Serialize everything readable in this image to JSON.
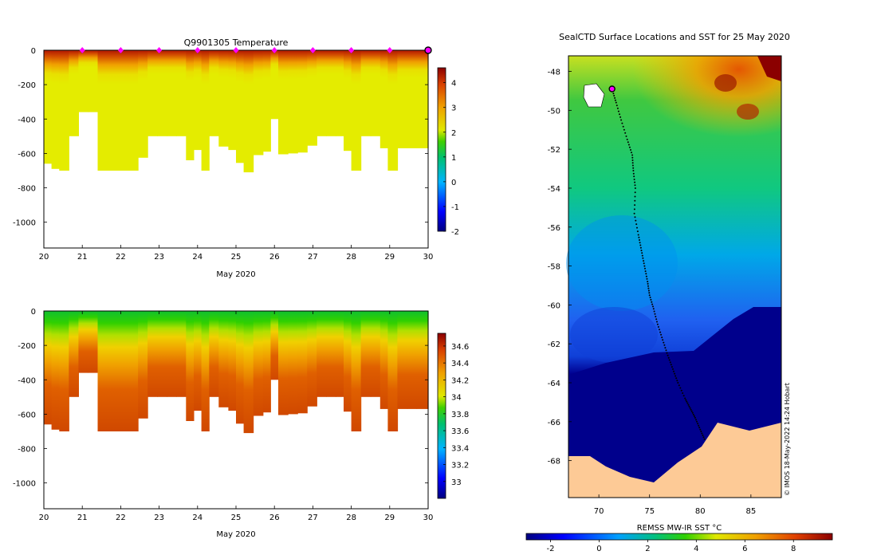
{
  "chart_data": [
    {
      "type": "heatmap",
      "id": "temperature",
      "title": "Q9901305  Temperature",
      "xlabel": "May 2020",
      "ylabel": "",
      "xlim": [
        20,
        30
      ],
      "ylim": [
        -1150,
        0
      ],
      "xticks": [
        "20",
        "21",
        "22",
        "23",
        "24",
        "25",
        "26",
        "27",
        "28",
        "29",
        "30"
      ],
      "yticks": [
        "0",
        "-200",
        "-400",
        "-600",
        "-800",
        "-1000"
      ],
      "ytick_values": [
        0,
        -200,
        -400,
        -600,
        -800,
        -1000
      ],
      "colorbar": {
        "min": -2,
        "max": 4.6,
        "ticks": [
          "4",
          "3",
          "2",
          "1",
          "0",
          "-1",
          "-2"
        ],
        "tick_values": [
          4,
          3,
          2,
          1,
          0,
          -1,
          -2
        ]
      },
      "profile_days": [
        20.0,
        20.2,
        20.4,
        20.65,
        20.9,
        21.15,
        21.4,
        21.5,
        21.7,
        21.95,
        22.2,
        22.45,
        22.7,
        22.95,
        23.2,
        23.45,
        23.7,
        23.9,
        24.1,
        24.3,
        24.55,
        24.8,
        25.0,
        25.2,
        25.45,
        25.7,
        25.9,
        26.1,
        26.35,
        26.6,
        26.85,
        27.1,
        27.35,
        27.6,
        27.8,
        28.0,
        28.25,
        28.5,
        28.75,
        28.95,
        29.2,
        29.45,
        29.7,
        29.95
      ],
      "profile_depths": [
        660,
        690,
        700,
        500,
        360,
        360,
        700,
        700,
        700,
        700,
        700,
        625,
        500,
        500,
        500,
        500,
        640,
        580,
        700,
        500,
        560,
        580,
        655,
        710,
        610,
        590,
        400,
        605,
        600,
        595,
        555,
        500,
        500,
        500,
        585,
        700,
        500,
        500,
        570,
        700,
        570,
        570,
        570,
        570
      ],
      "surface_marker_days": [
        21,
        22,
        23,
        24,
        25,
        26,
        27,
        28,
        29
      ],
      "surface_marker_color": "#ff00ff",
      "end_marker_day": 30
    },
    {
      "type": "heatmap",
      "id": "salinity",
      "title": "",
      "xlabel": "May 2020",
      "ylabel": "",
      "xlim": [
        20,
        30
      ],
      "ylim": [
        -1150,
        0
      ],
      "xticks": [
        "20",
        "21",
        "22",
        "23",
        "24",
        "25",
        "26",
        "27",
        "28",
        "29",
        "30"
      ],
      "yticks": [
        "0",
        "-200",
        "-400",
        "-600",
        "-800",
        "-1000"
      ],
      "ytick_values": [
        0,
        -200,
        -400,
        -600,
        -800,
        -1000
      ],
      "colorbar": {
        "min": 32.8,
        "max": 34.75,
        "ticks": [
          "34.6",
          "34.4",
          "34.2",
          "34",
          "33.8",
          "33.6",
          "33.4",
          "33.2",
          "33"
        ],
        "tick_values": [
          34.6,
          34.4,
          34.2,
          34,
          33.8,
          33.6,
          33.4,
          33.2,
          33
        ]
      },
      "profile_days": [
        20.0,
        20.2,
        20.4,
        20.65,
        20.9,
        21.15,
        21.4,
        21.5,
        21.7,
        21.95,
        22.2,
        22.45,
        22.7,
        22.95,
        23.2,
        23.45,
        23.7,
        23.9,
        24.1,
        24.3,
        24.55,
        24.8,
        25.0,
        25.2,
        25.45,
        25.7,
        25.9,
        26.1,
        26.35,
        26.6,
        26.85,
        27.1,
        27.35,
        27.6,
        27.8,
        28.0,
        28.25,
        28.5,
        28.75,
        28.95,
        29.2,
        29.45,
        29.7,
        29.95
      ],
      "profile_depths": [
        660,
        690,
        700,
        500,
        360,
        360,
        700,
        700,
        700,
        700,
        700,
        625,
        500,
        500,
        500,
        500,
        640,
        580,
        700,
        500,
        560,
        580,
        655,
        710,
        610,
        590,
        400,
        605,
        600,
        595,
        555,
        500,
        500,
        500,
        585,
        700,
        500,
        500,
        570,
        700,
        570,
        570,
        570,
        570
      ]
    },
    {
      "type": "heatmap",
      "id": "sst_map",
      "title": "SealCTD Surface Locations and SST for 25 May 2020",
      "xlabel": "",
      "ylabel": "",
      "xlim": [
        67,
        88
      ],
      "ylim": [
        -69.9,
        -47.2
      ],
      "xticks": [
        "70",
        "75",
        "80",
        "85"
      ],
      "xtick_values": [
        70,
        75,
        80,
        85
      ],
      "yticks": [
        "-48",
        "-50",
        "-52",
        "-54",
        "-56",
        "-58",
        "-60",
        "-62",
        "-64",
        "-66",
        "-68"
      ],
      "ytick_values": [
        -48,
        -50,
        -52,
        -54,
        -56,
        -58,
        -60,
        -62,
        -64,
        -66,
        -68
      ],
      "colorbar": {
        "label": "REMSS MW-IR SST °C",
        "min": -3,
        "max": 9.6,
        "ticks": [
          "-2",
          "0",
          "2",
          "4",
          "6",
          "8"
        ],
        "tick_values": [
          -2,
          0,
          2,
          4,
          6,
          8
        ]
      },
      "track_lon": [
        71.3,
        71.7,
        72.2,
        72.8,
        73.3,
        73.4,
        73.6,
        73.5,
        73.9,
        74.2,
        74.5,
        74.8,
        75.0,
        75.4,
        75.8,
        76.3,
        76.8,
        77.3,
        77.8,
        78.5,
        79.0,
        79.5,
        80.0,
        80.5
      ],
      "track_lat": [
        -48.9,
        -49.6,
        -50.5,
        -51.5,
        -52.3,
        -53.1,
        -54.0,
        -55.3,
        -56.4,
        -57.2,
        -58.0,
        -58.8,
        -59.5,
        -60.2,
        -61.0,
        -61.8,
        -62.6,
        -63.3,
        -64.0,
        -64.8,
        -65.3,
        -65.8,
        -66.4,
        -67.0
      ],
      "last_position_lon": 71.3,
      "last_position_lat": -48.9,
      "annotation": "© IMOS 18-May-2022 14:24 Hobart"
    }
  ]
}
